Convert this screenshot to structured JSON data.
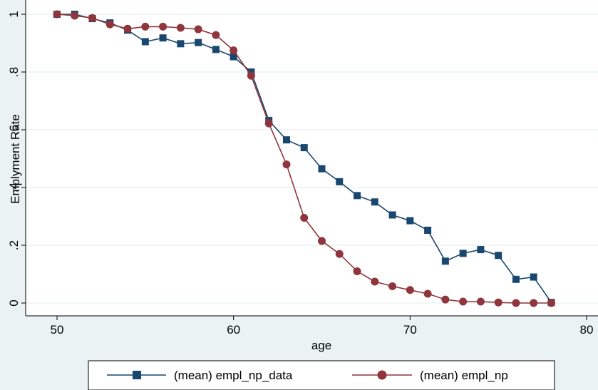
{
  "chart_data": {
    "type": "line",
    "title": "",
    "xlabel": "age",
    "ylabel": "Emplyment Rate",
    "xlim": [
      50,
      80
    ],
    "ylim": [
      0,
      1
    ],
    "x_ticks": [
      50,
      60,
      70,
      80
    ],
    "x_tick_labels": [
      "50",
      "60",
      "70",
      "80"
    ],
    "y_ticks": [
      0,
      0.2,
      0.4,
      0.6,
      0.8,
      1
    ],
    "y_tick_labels": [
      "0",
      ".2",
      ".4",
      ".6",
      ".8",
      "1"
    ],
    "grid": "horizontal",
    "legend_position": "bottom",
    "x": [
      50,
      51,
      52,
      53,
      54,
      55,
      56,
      57,
      58,
      59,
      60,
      61,
      62,
      63,
      64,
      65,
      66,
      67,
      68,
      69,
      70,
      71,
      72,
      73,
      74,
      75,
      76,
      77,
      78
    ],
    "series": [
      {
        "name": "(mean) empl_np_data",
        "marker": "square",
        "color": "#1a476f",
        "values": [
          1.0,
          1.0,
          0.985,
          0.97,
          0.945,
          0.905,
          0.918,
          0.898,
          0.902,
          0.878,
          0.853,
          0.8,
          0.632,
          0.565,
          0.538,
          0.465,
          0.42,
          0.372,
          0.35,
          0.305,
          0.285,
          0.252,
          0.145,
          0.172,
          0.185,
          0.165,
          0.082,
          0.09,
          0.002
        ]
      },
      {
        "name": "(mean) empl_np",
        "marker": "circle",
        "color": "#90353b",
        "values": [
          1.0,
          0.995,
          0.987,
          0.965,
          0.95,
          0.957,
          0.957,
          0.953,
          0.948,
          0.928,
          0.875,
          0.787,
          0.622,
          0.48,
          0.295,
          0.215,
          0.17,
          0.11,
          0.074,
          0.058,
          0.045,
          0.032,
          0.012,
          0.005,
          0.005,
          0.002,
          0.0,
          0.0,
          0.0
        ]
      }
    ]
  }
}
